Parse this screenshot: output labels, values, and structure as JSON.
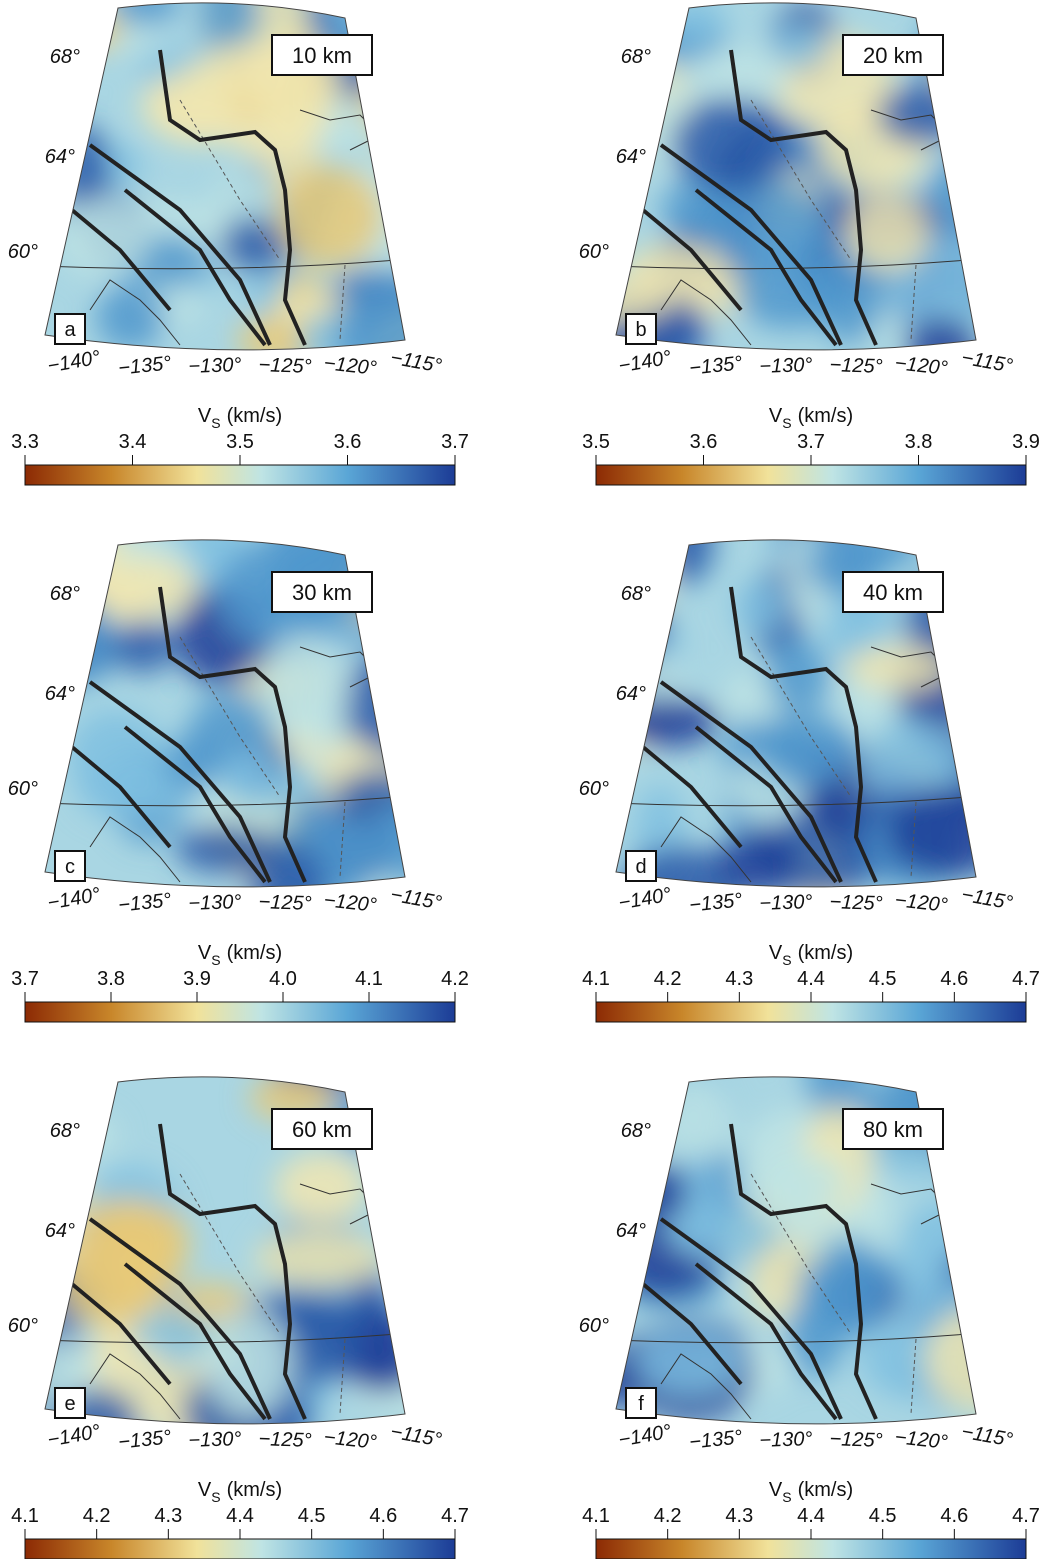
{
  "panels": [
    {
      "letter": "a",
      "depth": "10 km",
      "lat_labels": [
        "68°",
        "64°",
        "60°"
      ],
      "lon_labels": [
        "−140°",
        "−135°",
        "−130°",
        "−125°",
        "−120°",
        "−115°"
      ],
      "colorbar": {
        "label": [
          "V",
          "S",
          "(km/s)"
        ],
        "ticks": [
          "3.3",
          "3.4",
          "3.5",
          "3.6",
          "3.7"
        ]
      }
    },
    {
      "letter": "b",
      "depth": "20 km",
      "lat_labels": [
        "68°",
        "64°",
        "60°"
      ],
      "lon_labels": [
        "−140°",
        "−135°",
        "−130°",
        "−125°",
        "−120°",
        "−115°"
      ],
      "colorbar": {
        "label": [
          "V",
          "S",
          "(km/s)"
        ],
        "ticks": [
          "3.5",
          "3.6",
          "3.7",
          "3.8",
          "3.9"
        ]
      }
    },
    {
      "letter": "c",
      "depth": "30 km",
      "lat_labels": [
        "68°",
        "64°",
        "60°"
      ],
      "lon_labels": [
        "−140°",
        "−135°",
        "−130°",
        "−125°",
        "−120°",
        "−115°"
      ],
      "colorbar": {
        "label": [
          "V",
          "S",
          "(km/s)"
        ],
        "ticks": [
          "3.7",
          "3.8",
          "3.9",
          "4.0",
          "4.1",
          "4.2"
        ]
      }
    },
    {
      "letter": "d",
      "depth": "40 km",
      "lat_labels": [
        "68°",
        "64°",
        "60°"
      ],
      "lon_labels": [
        "−140°",
        "−135°",
        "−130°",
        "−125°",
        "−120°",
        "−115°"
      ],
      "colorbar": {
        "label": [
          "V",
          "S",
          "(km/s)"
        ],
        "ticks": [
          "4.1",
          "4.2",
          "4.3",
          "4.4",
          "4.5",
          "4.6",
          "4.7"
        ]
      }
    },
    {
      "letter": "e",
      "depth": "60 km",
      "lat_labels": [
        "68°",
        "64°",
        "60°"
      ],
      "lon_labels": [
        "−140°",
        "−135°",
        "−130°",
        "−125°",
        "−120°",
        "−115°"
      ],
      "colorbar": {
        "label": [
          "V",
          "S",
          "(km/s)"
        ],
        "ticks": [
          "4.1",
          "4.2",
          "4.3",
          "4.4",
          "4.5",
          "4.6",
          "4.7"
        ]
      }
    },
    {
      "letter": "f",
      "depth": "80 km",
      "lat_labels": [
        "68°",
        "64°",
        "60°"
      ],
      "lon_labels": [
        "−140°",
        "−135°",
        "−130°",
        "−125°",
        "−120°",
        "−115°"
      ],
      "colorbar": {
        "label": [
          "V",
          "S",
          "(km/s)"
        ],
        "ticks": [
          "4.1",
          "4.2",
          "4.3",
          "4.4",
          "4.5",
          "4.6",
          "4.7"
        ]
      }
    }
  ]
}
